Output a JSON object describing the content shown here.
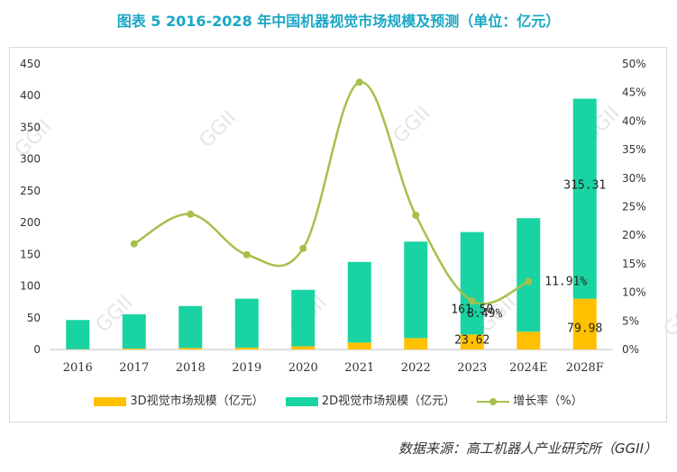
{
  "title": "图表 5   2016-2028 年中国机器视觉市场规模及预测（单位：亿元）",
  "source": "数据来源：高工机器人产业研究所（GGII）",
  "watermark": "GGII",
  "legend": {
    "s3d": "3D视觉市场规模（亿元）",
    "s2d": "2D视觉市场规模（亿元）",
    "growth": "增长率（%）"
  },
  "colors": {
    "s3d": "#ffc000",
    "s2d": "#19d3a2",
    "growth": "#a6c04a",
    "title": "#1aa7c4"
  },
  "chart_data": {
    "type": "bar",
    "stacked": true,
    "categories": [
      "2016",
      "2017",
      "2018",
      "2019",
      "2020",
      "2021",
      "2022",
      "2023",
      "2024E",
      "2028F"
    ],
    "series": [
      {
        "name": "3D视觉市场规模（亿元）",
        "axis": "left",
        "values": [
          0.5,
          1.5,
          2.5,
          3,
          5,
          11,
          18,
          23.62,
          28,
          79.98
        ]
      },
      {
        "name": "2D视觉市场规模（亿元）",
        "axis": "left",
        "values": [
          46,
          54,
          66,
          77,
          89,
          127,
          152,
          161.5,
          179,
          315.31
        ]
      },
      {
        "name": "增长率（%）",
        "type": "line",
        "axis": "right",
        "values": [
          null,
          18.5,
          23.7,
          16.6,
          17.7,
          46.8,
          23.5,
          8.49,
          11.91,
          null
        ]
      }
    ],
    "data_labels": [
      {
        "category": "2023",
        "series": "2D视觉市场规模（亿元）",
        "text": "161.50"
      },
      {
        "category": "2023",
        "series": "3D视觉市场规模（亿元）",
        "text": "23.62"
      },
      {
        "category": "2023",
        "series": "增长率（%）",
        "text": "8.49%"
      },
      {
        "category": "2024E",
        "series": "增长率（%）",
        "text": "11.91%"
      },
      {
        "category": "2028F",
        "series": "2D视觉市场规模（亿元）",
        "text": "315.31"
      },
      {
        "category": "2028F",
        "series": "3D视觉市场规模（亿元）",
        "text": "79.98"
      }
    ],
    "y_left": {
      "min": 0,
      "max": 450,
      "ticks": [
        "0",
        "50",
        "100",
        "150",
        "200",
        "250",
        "300",
        "350",
        "400",
        "450"
      ]
    },
    "y_right": {
      "min": 0,
      "max": 50,
      "ticks": [
        "0%",
        "5%",
        "10%",
        "15%",
        "20%",
        "25%",
        "30%",
        "35%",
        "40%",
        "45%",
        "50%"
      ]
    },
    "grid": false,
    "legend_position": "bottom"
  }
}
